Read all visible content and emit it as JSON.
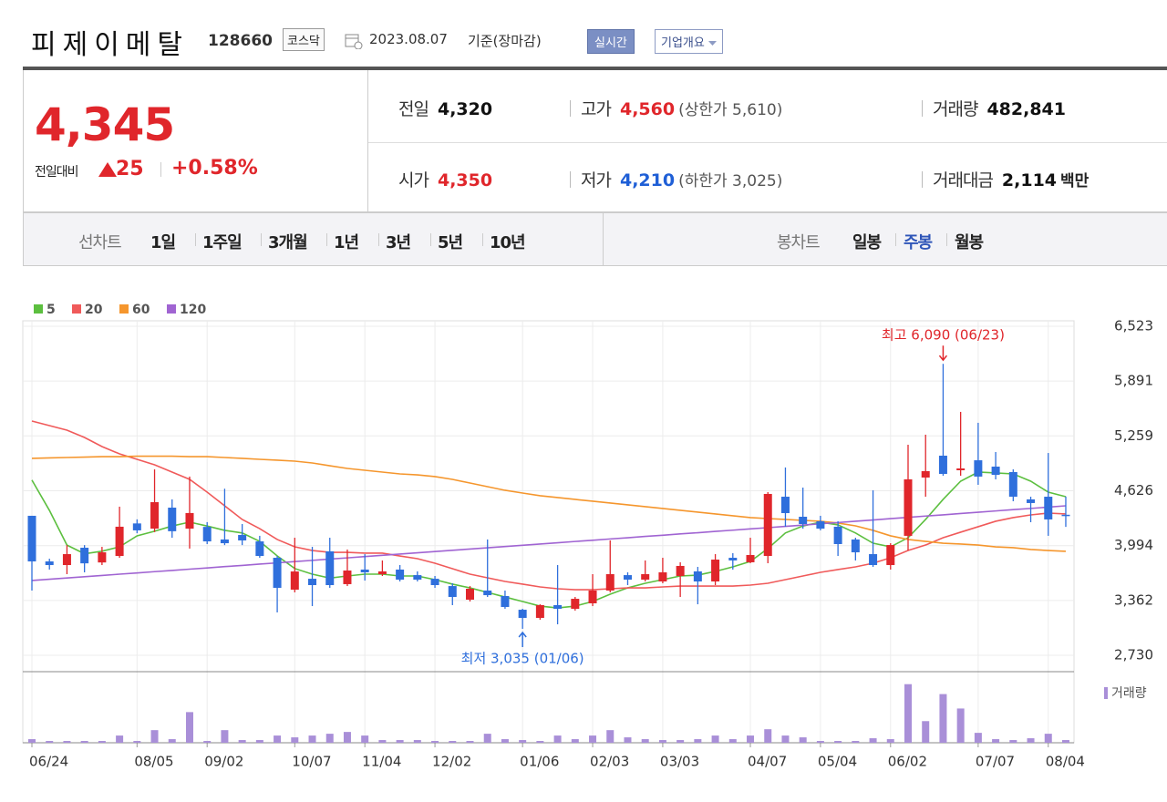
{
  "header": {
    "title": "피제이메탈",
    "code": "128660",
    "market": "코스닥",
    "date": "2023.08.07",
    "basis": "기준(장마감)",
    "buttons": [
      "실시간",
      "기업개요"
    ]
  },
  "quote": {
    "price": "4,345",
    "change_label": "전일대비",
    "change": "25",
    "change_pct": "+0.58%",
    "rows": [
      [
        {
          "label": "전일",
          "value": "4,320",
          "color": "#111111"
        },
        {
          "label": "고가",
          "value": "4,560",
          "note": "(상한가 5,610)",
          "color": "#e0262b"
        },
        {
          "label": "거래량",
          "value": "482,841",
          "color": "#111111"
        }
      ],
      [
        {
          "label": "시가",
          "value": "4,350",
          "color": "#e0262b"
        },
        {
          "label": "저가",
          "value": "4,210",
          "note": "(하한가 3,025)",
          "color": "#1f5fd6"
        },
        {
          "label": "거래대금",
          "value": "2,114",
          "unit": "백만",
          "color": "#111111"
        }
      ]
    ]
  },
  "tabs": {
    "line_label": "선차트",
    "line": [
      "1일",
      "1주일",
      "3개월",
      "1년",
      "3년",
      "5년",
      "10년"
    ],
    "candle_label": "봉차트",
    "candle": [
      "일봉",
      "주봉",
      "월봉"
    ],
    "candle_selected": 1
  },
  "chart_data": {
    "type": "candlestick",
    "categories": [
      "06/24",
      null,
      null,
      null,
      null,
      null,
      "08/05",
      null,
      null,
      null,
      "09/02",
      null,
      null,
      null,
      null,
      "10/07",
      null,
      null,
      null,
      "11/04",
      null,
      null,
      null,
      "12/02",
      null,
      null,
      null,
      null,
      "01/06",
      null,
      null,
      null,
      "02/03",
      null,
      null,
      null,
      "03/03",
      null,
      null,
      null,
      null,
      "04/07",
      null,
      null,
      null,
      "05/04",
      null,
      null,
      null,
      "06/02",
      null,
      null,
      null,
      null,
      "07/07",
      null,
      null,
      null,
      "08/04",
      null
    ],
    "open": [
      4338,
      3812,
      3770,
      3970,
      3800,
      3875,
      4250,
      4190,
      4432,
      4190,
      4210,
      4065,
      4117,
      4043,
      3854,
      3486,
      3612,
      3928,
      3550,
      3718,
      3665,
      3718,
      3654,
      3612,
      3528,
      3371,
      3476,
      3413,
      3255,
      3161,
      3308,
      3266,
      3329,
      3476,
      3654,
      3602,
      3581,
      3644,
      3697,
      3581,
      3854,
      3802,
      3875,
      4558,
      4327,
      4275,
      4212,
      4065,
      3896,
      3770,
      4107,
      4779,
      5031,
      4863,
      4978,
      4905,
      4842,
      4527,
      4558,
      4350
    ],
    "high": [
      4338,
      3843,
      4000,
      4000,
      3980,
      4443,
      4297,
      4873,
      4527,
      4790,
      4265,
      4650,
      4243,
      4107,
      3875,
      4085,
      3980,
      4085,
      3949,
      3896,
      3823,
      3770,
      3697,
      3644,
      3560,
      3528,
      4065,
      3476,
      3266,
      3318,
      3770,
      3402,
      3665,
      4054,
      3686,
      3823,
      3854,
      3802,
      3749,
      3896,
      3907,
      4085,
      4611,
      4895,
      4663,
      4338,
      4275,
      4085,
      4632,
      4022,
      5157,
      5273,
      6090,
      5536,
      5410,
      5073,
      4873,
      4558,
      5062,
      4560
    ],
    "low": [
      3476,
      3718,
      3665,
      3686,
      3770,
      3854,
      4137,
      4150,
      4085,
      3960,
      4012,
      4000,
      4000,
      3854,
      3224,
      3455,
      3297,
      3507,
      3528,
      3591,
      3644,
      3581,
      3581,
      3507,
      3308,
      3350,
      3402,
      3266,
      3035,
      3140,
      3087,
      3245,
      3297,
      3455,
      3539,
      3581,
      3560,
      3402,
      3318,
      3539,
      3718,
      3791,
      3791,
      4212,
      4190,
      4170,
      3875,
      3823,
      3749,
      3718,
      3938,
      4558,
      4800,
      4800,
      4695,
      4758,
      4506,
      4264,
      4107,
      4210
    ],
    "close": [
      3812,
      3770,
      3896,
      3790,
      3917,
      4212,
      4170,
      4495,
      4160,
      4370,
      4043,
      4022,
      4054,
      3875,
      3507,
      3696,
      3539,
      3539,
      3707,
      3686,
      3697,
      3602,
      3602,
      3539,
      3402,
      3497,
      3423,
      3287,
      3161,
      3308,
      3266,
      3381,
      3476,
      3665,
      3602,
      3665,
      3686,
      3760,
      3581,
      3833,
      3823,
      3886,
      4590,
      4369,
      4243,
      4190,
      4012,
      3917,
      3770,
      4001,
      4758,
      4853,
      4821,
      4884,
      4790,
      4810,
      4558,
      4485,
      4296,
      4345
    ],
    "up_color": "#e0262b",
    "down_color": "#2f6fdc",
    "series": [
      {
        "name": "5",
        "color": "#5cbf3f",
        "values": [
          4750,
          4400,
          4000,
          3900,
          3930,
          3980,
          4107,
          4160,
          4220,
          4265,
          4220,
          4170,
          4140,
          4043,
          3875,
          3730,
          3665,
          3620,
          3644,
          3665,
          3665,
          3644,
          3644,
          3602,
          3550,
          3507,
          3455,
          3402,
          3350,
          3297,
          3276,
          3297,
          3350,
          3434,
          3507,
          3560,
          3602,
          3644,
          3654,
          3697,
          3749,
          3812,
          3960,
          4140,
          4220,
          4265,
          4233,
          4140,
          4022,
          3980,
          4085,
          4296,
          4527,
          4737,
          4842,
          4832,
          4821,
          4737,
          4611,
          4558
        ]
      },
      {
        "name": "20",
        "color": "#f05a5a",
        "values": [
          5430,
          5378,
          5325,
          5241,
          5136,
          5052,
          4989,
          4926,
          4842,
          4758,
          4611,
          4453,
          4296,
          4190,
          4065,
          3980,
          3938,
          3917,
          3917,
          3907,
          3907,
          3875,
          3844,
          3791,
          3728,
          3665,
          3623,
          3581,
          3550,
          3518,
          3497,
          3486,
          3486,
          3497,
          3507,
          3507,
          3518,
          3528,
          3528,
          3528,
          3528,
          3539,
          3560,
          3602,
          3644,
          3686,
          3718,
          3749,
          3791,
          3854,
          3938,
          4001,
          4085,
          4149,
          4212,
          4275,
          4317,
          4348,
          4369,
          4359
        ]
      },
      {
        "name": "60",
        "color": "#f5962d",
        "values": [
          5000,
          5005,
          5010,
          5015,
          5020,
          5020,
          5025,
          5025,
          5025,
          5020,
          5020,
          5010,
          5000,
          4989,
          4979,
          4968,
          4947,
          4915,
          4884,
          4863,
          4842,
          4821,
          4810,
          4790,
          4758,
          4716,
          4674,
          4632,
          4600,
          4569,
          4548,
          4527,
          4506,
          4485,
          4464,
          4443,
          4422,
          4401,
          4380,
          4359,
          4338,
          4317,
          4306,
          4296,
          4285,
          4275,
          4254,
          4222,
          4170,
          4107,
          4065,
          4043,
          4022,
          4012,
          4001,
          3980,
          3970,
          3949,
          3938,
          3928
        ]
      },
      {
        "name": "120",
        "color": "#a064d2",
        "values": [
          3592,
          3607,
          3621,
          3636,
          3650,
          3665,
          3679,
          3694,
          3708,
          3723,
          3737,
          3752,
          3766,
          3781,
          3795,
          3810,
          3824,
          3839,
          3853,
          3868,
          3882,
          3897,
          3911,
          3926,
          3940,
          3955,
          3969,
          3984,
          3998,
          4013,
          4027,
          4042,
          4056,
          4071,
          4085,
          4100,
          4114,
          4129,
          4143,
          4158,
          4172,
          4187,
          4201,
          4216,
          4231,
          4246,
          4260,
          4275,
          4290,
          4305,
          4320,
          4335,
          4349,
          4364,
          4379,
          4394,
          4409,
          4423,
          4438,
          4453
        ]
      }
    ],
    "ylim": [
      2730,
      6523
    ],
    "yticks": [
      {
        "value": 2730,
        "label": "2,730"
      },
      {
        "value": 3362,
        "label": "3,362"
      },
      {
        "value": 3994,
        "label": "3,994"
      },
      {
        "value": 4626,
        "label": "4,626"
      },
      {
        "value": 5259,
        "label": "5,259"
      },
      {
        "value": 5891,
        "label": "5,891"
      },
      {
        "value": 6523,
        "label": "6,523"
      }
    ],
    "grid": true,
    "high_label": "최고 6,090 (06/23)",
    "low_label": "최저 3,035 (01/06)",
    "volume": {
      "name": "거래량",
      "color": "#a98fd8",
      "ylim": [
        0,
        11000000
      ],
      "values": [
        640000,
        320000,
        320000,
        320000,
        320000,
        1280000,
        320000,
        2240000,
        640000,
        5440000,
        320000,
        2240000,
        480000,
        480000,
        1280000,
        960000,
        1280000,
        1600000,
        1920000,
        1280000,
        480000,
        480000,
        480000,
        320000,
        320000,
        320000,
        1600000,
        640000,
        480000,
        320000,
        1280000,
        640000,
        1280000,
        2240000,
        960000,
        640000,
        480000,
        480000,
        640000,
        1280000,
        640000,
        1280000,
        2400000,
        1280000,
        960000,
        320000,
        320000,
        320000,
        800000,
        640000,
        10400000,
        3840000,
        8640000,
        6080000,
        1760000,
        640000,
        480000,
        800000,
        1600000,
        480000
      ]
    }
  }
}
